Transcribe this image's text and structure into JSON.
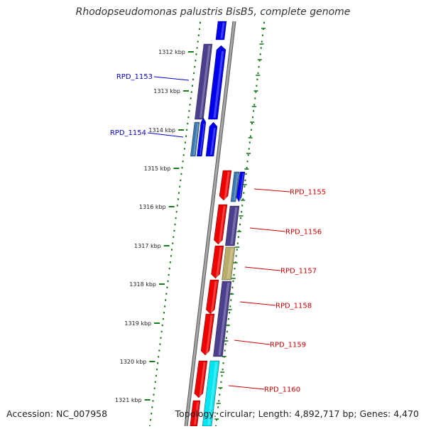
{
  "title": "Rhodopseudomonas palustris BisB5, complete genome",
  "footer": {
    "accession": "Accession: NC_007958",
    "summary": "Topology: circular; Length: 4,892,717 bp; Genes: 4,470"
  },
  "colors": {
    "backbone": "#8a8a8a",
    "tick_dots": "#1a7a1a",
    "left_label": "#0000cc",
    "right_label": "#cc0000"
  },
  "scale_ticks": [
    "1312 kbp",
    "1313 kbp",
    "1314 kbp",
    "1315 kbp",
    "1316 kbp",
    "1317 kbp",
    "1318 kbp",
    "1319 kbp",
    "1320 kbp",
    "1321 kbp"
  ],
  "left_gene_labels": [
    "RPD_1153",
    "RPD_1154"
  ],
  "right_gene_labels": [
    "RPD_1155",
    "RPD_1156",
    "RPD_1157",
    "RPD_1158",
    "RPD_1159",
    "RPD_1160"
  ]
}
